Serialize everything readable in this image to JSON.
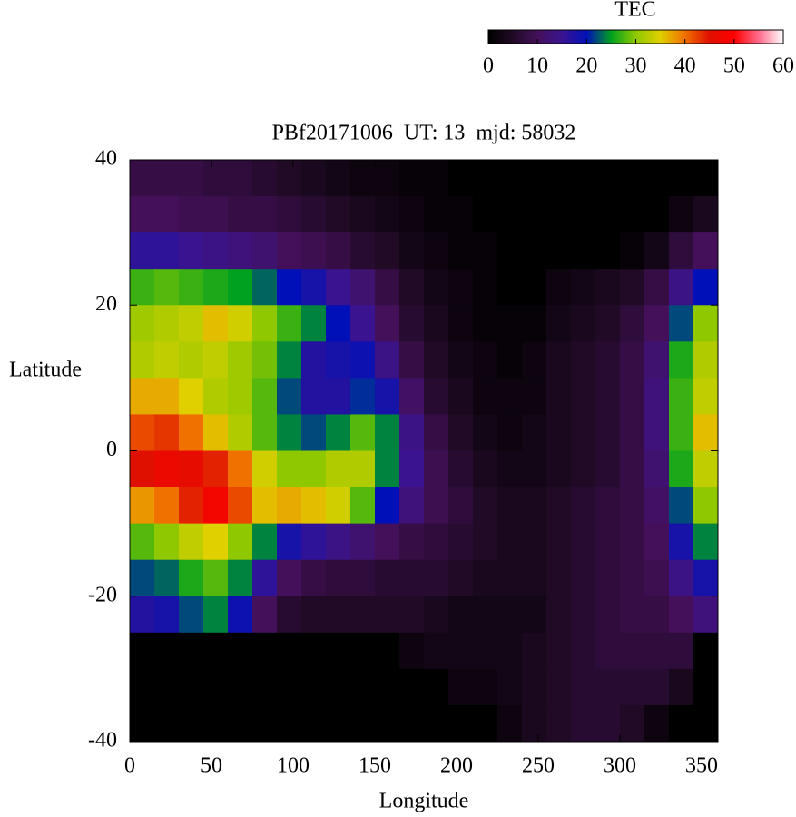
{
  "chart_data": {
    "type": "heatmap",
    "title": "PBf20171006  UT: 13  mjd: 58032",
    "x_label": "Longitude",
    "y_label": "Latitude",
    "colorbar_label": "TEC",
    "xlim": [
      0,
      360
    ],
    "xticks": [
      0,
      50,
      100,
      150,
      200,
      250,
      300,
      350
    ],
    "ylim": [
      -40,
      40
    ],
    "yticks": [
      -40,
      -20,
      0,
      20,
      40
    ],
    "zlim": [
      0,
      60
    ],
    "zticks": [
      0,
      10,
      20,
      30,
      40,
      50,
      60
    ],
    "colorscale": [
      {
        "value": 0,
        "color": "#000000"
      },
      {
        "value": 5,
        "color": "#200a26"
      },
      {
        "value": 10,
        "color": "#44105a"
      },
      {
        "value": 15,
        "color": "#3a1490"
      },
      {
        "value": 20,
        "color": "#0010b8"
      },
      {
        "value": 25,
        "color": "#00a020"
      },
      {
        "value": 30,
        "color": "#90c800"
      },
      {
        "value": 35,
        "color": "#e0d000"
      },
      {
        "value": 40,
        "color": "#f07000"
      },
      {
        "value": 45,
        "color": "#e01000"
      },
      {
        "value": 50,
        "color": "#ff0000"
      },
      {
        "value": 55,
        "color": "#ff6a8a"
      },
      {
        "value": 60,
        "color": "#ffffff"
      }
    ],
    "x": [
      7.5,
      22.5,
      37.5,
      52.5,
      67.5,
      82.5,
      97.5,
      112.5,
      127.5,
      142.5,
      157.5,
      172.5,
      187.5,
      202.5,
      217.5,
      232.5,
      247.5,
      262.5,
      277.5,
      292.5,
      307.5,
      322.5,
      337.5,
      352.5
    ],
    "y": [
      37.5,
      32.5,
      27.5,
      22.5,
      17.5,
      12.5,
      7.5,
      2.5,
      -2.5,
      -7.5,
      -12.5,
      -17.5,
      -22.5,
      -27.5,
      -32.5,
      -37.5
    ],
    "z": [
      [
        8,
        8,
        8,
        7,
        7,
        6,
        5,
        4,
        3,
        2,
        2,
        1,
        1,
        0,
        0,
        0,
        0,
        0,
        0,
        0,
        0,
        0,
        0,
        0
      ],
      [
        10,
        10,
        9,
        9,
        8,
        8,
        7,
        6,
        5,
        4,
        3,
        2,
        1,
        1,
        0,
        0,
        0,
        0,
        0,
        0,
        0,
        0,
        2,
        4
      ],
      [
        16,
        16,
        15,
        14,
        13,
        12,
        10,
        9,
        8,
        6,
        5,
        3,
        2,
        1,
        1,
        0,
        0,
        0,
        0,
        0,
        1,
        3,
        7,
        10
      ],
      [
        27,
        28,
        27,
        26,
        25,
        23,
        20,
        18,
        15,
        12,
        8,
        5,
        3,
        2,
        1,
        0,
        0,
        2,
        3,
        4,
        5,
        8,
        14,
        20
      ],
      [
        31,
        32,
        33,
        36,
        34,
        30,
        27,
        24,
        20,
        15,
        10,
        6,
        4,
        2,
        1,
        1,
        1,
        3,
        4,
        5,
        7,
        10,
        22,
        30
      ],
      [
        32,
        33,
        32,
        33,
        31,
        29,
        24,
        17,
        18,
        19,
        14,
        8,
        5,
        3,
        2,
        1,
        2,
        4,
        5,
        6,
        8,
        12,
        26,
        32
      ],
      [
        37,
        37,
        35,
        32,
        31,
        28,
        22,
        17,
        17,
        21,
        18,
        11,
        6,
        4,
        2,
        2,
        2,
        4,
        5,
        6,
        8,
        13,
        27,
        33
      ],
      [
        42,
        43,
        40,
        36,
        32,
        28,
        24,
        22,
        24,
        28,
        24,
        14,
        8,
        5,
        3,
        2,
        3,
        4,
        5,
        6,
        8,
        13,
        27,
        36
      ],
      [
        45,
        47,
        46,
        44,
        40,
        34,
        30,
        30,
        32,
        32,
        24,
        15,
        9,
        6,
        4,
        3,
        3,
        4,
        5,
        6,
        8,
        12,
        26,
        33
      ],
      [
        38,
        40,
        44,
        48,
        42,
        36,
        37,
        36,
        34,
        28,
        20,
        13,
        9,
        7,
        5,
        4,
        4,
        5,
        6,
        7,
        8,
        11,
        22,
        30
      ],
      [
        28,
        30,
        33,
        35,
        30,
        24,
        18,
        16,
        14,
        12,
        10,
        8,
        7,
        6,
        5,
        4,
        4,
        5,
        6,
        7,
        8,
        10,
        18,
        24
      ],
      [
        22,
        23,
        26,
        28,
        24,
        16,
        10,
        8,
        7,
        7,
        6,
        6,
        6,
        5,
        4,
        4,
        4,
        5,
        6,
        7,
        8,
        9,
        14,
        18
      ],
      [
        17,
        18,
        22,
        24,
        19,
        10,
        6,
        5,
        5,
        5,
        5,
        5,
        4,
        3,
        3,
        3,
        3,
        5,
        6,
        7,
        8,
        8,
        10,
        13
      ],
      [
        0,
        0,
        0,
        0,
        0,
        0,
        0,
        0,
        0,
        0,
        0,
        2,
        3,
        3,
        3,
        3,
        4,
        5,
        6,
        7,
        7,
        7,
        7,
        0
      ],
      [
        0,
        0,
        0,
        0,
        0,
        0,
        0,
        0,
        0,
        0,
        0,
        0,
        0,
        2,
        2,
        3,
        4,
        5,
        6,
        6,
        6,
        6,
        4,
        0
      ],
      [
        0,
        0,
        0,
        0,
        0,
        0,
        0,
        0,
        0,
        0,
        0,
        0,
        0,
        0,
        0,
        2,
        4,
        5,
        6,
        6,
        5,
        2,
        0,
        0
      ]
    ]
  }
}
